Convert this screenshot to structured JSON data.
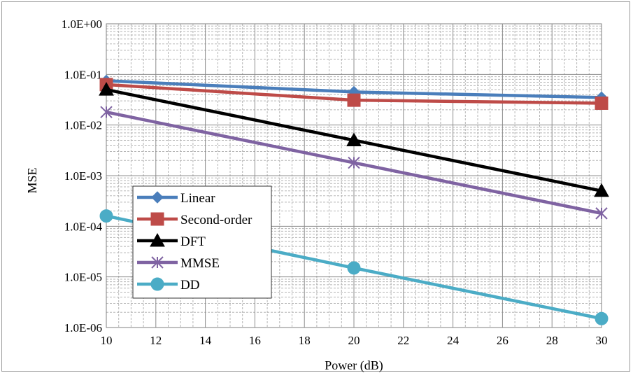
{
  "chart_data": {
    "type": "line",
    "title": "",
    "xlabel": "Power (dB)",
    "ylabel": "MSE",
    "x": [
      10,
      20,
      30
    ],
    "xlim": [
      10,
      30
    ],
    "xticks": [
      "10",
      "12",
      "14",
      "16",
      "18",
      "20",
      "22",
      "24",
      "26",
      "28",
      "30"
    ],
    "xtick_values": [
      10,
      12,
      14,
      16,
      18,
      20,
      22,
      24,
      26,
      28,
      30
    ],
    "yscale": "log",
    "ylim": [
      1e-06,
      1
    ],
    "yticks": [
      "1.0E+00",
      "1.0E-01",
      "1.0E-02",
      "1.0E-03",
      "1.0E-04",
      "1.0E-05",
      "1.0E-06"
    ],
    "ytick_values": [
      1,
      0.1,
      0.01,
      0.001,
      0.0001,
      1e-05,
      1e-06
    ],
    "grid": "major and minor (dashed)",
    "legend_position": "lower-left",
    "series": [
      {
        "name": "Linear",
        "values": [
          0.075,
          0.045,
          0.035
        ],
        "color": "#4a7ebb",
        "marker": "diamond"
      },
      {
        "name": "Second-order",
        "values": [
          0.063,
          0.031,
          0.027
        ],
        "color": "#be4b48",
        "marker": "square"
      },
      {
        "name": "DFT",
        "values": [
          0.05,
          0.005,
          0.0005
        ],
        "color": "#000000",
        "marker": "triangle"
      },
      {
        "name": "MMSE",
        "values": [
          0.018,
          0.0018,
          0.00018
        ],
        "color": "#7f63a2",
        "marker": "star"
      },
      {
        "name": "DD",
        "values": [
          0.00016,
          1.5e-05,
          1.5e-06
        ],
        "color": "#4bacc6",
        "marker": "circle"
      }
    ]
  }
}
